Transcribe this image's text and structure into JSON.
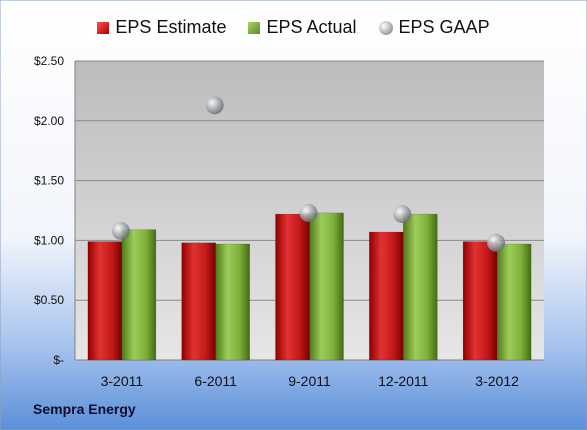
{
  "company": "Sempra Energy",
  "legend": [
    {
      "label": "EPS Estimate",
      "icon": "red-square-icon"
    },
    {
      "label": "EPS Actual",
      "icon": "green-square-icon"
    },
    {
      "label": "EPS GAAP",
      "icon": "gray-sphere-icon"
    }
  ],
  "colors": {
    "estimate": "#c41a1a",
    "actual": "#7fb13a",
    "gaap": "#a5a9b0",
    "background_top": "#ffffff",
    "background_bottom": "#5b8fd8"
  },
  "chart_data": {
    "type": "bar",
    "categories": [
      "3-2011",
      "6-2011",
      "9-2011",
      "12-2011",
      "3-2012"
    ],
    "series": [
      {
        "name": "EPS Estimate",
        "values": [
          0.99,
          0.98,
          1.22,
          1.07,
          0.99
        ]
      },
      {
        "name": "EPS Actual",
        "values": [
          1.09,
          0.97,
          1.23,
          1.22,
          0.97
        ]
      },
      {
        "name": "EPS GAAP",
        "values": [
          1.08,
          2.13,
          1.23,
          1.22,
          0.98
        ],
        "style": "marker"
      }
    ],
    "ylim": [
      0,
      2.5
    ],
    "yticks": [
      0,
      0.5,
      1,
      1.5,
      2,
      2.5
    ],
    "ytick_labels": [
      "$-",
      "$0.50",
      "$1.00",
      "$1.50",
      "$2.00",
      "$2.50"
    ],
    "grid": true,
    "legend_position": "top"
  }
}
